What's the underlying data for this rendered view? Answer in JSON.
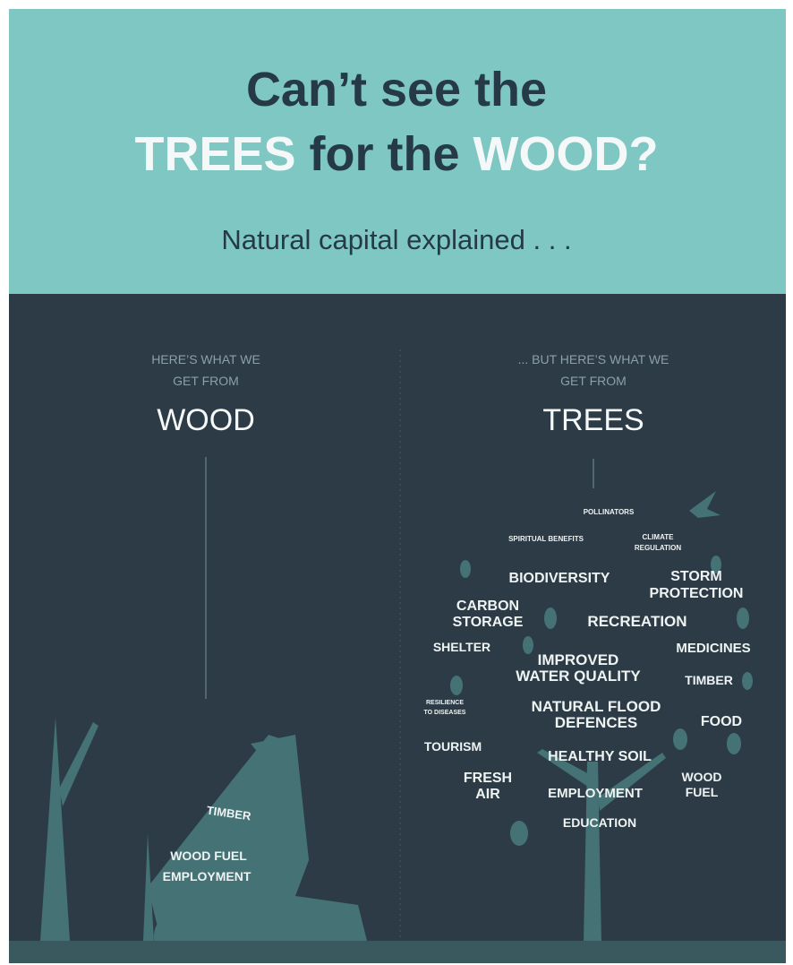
{
  "header": {
    "title_line1": "Can’t see the",
    "title_line2": [
      "TREES",
      " for the ",
      "WOOD?"
    ],
    "subtitle": "Natural capital explained . . ."
  },
  "left": {
    "heading_lines": [
      "HERE’S WHAT WE",
      "GET FROM"
    ],
    "title": "WOOD",
    "items": [
      [
        "TIMBER"
      ],
      [
        "WOOD FUEL"
      ],
      [
        "EMPLOYMENT"
      ]
    ]
  },
  "right": {
    "heading_lines": [
      "... BUT HERE’S WHAT WE",
      "GET FROM"
    ],
    "title": "TREES",
    "items": [
      [
        "POLLINATORS"
      ],
      [
        "SPIRITUAL BENEFITS"
      ],
      [
        "CLIMATE",
        "REGULATION"
      ],
      [
        "BIODIVERSITY"
      ],
      [
        "STORM",
        "PROTECTION"
      ],
      [
        "CARBON",
        "STORAGE"
      ],
      [
        "RECREATION"
      ],
      [
        "SHELTER"
      ],
      [
        "IMPROVED",
        "WATER QUALITY"
      ],
      [
        "MEDICINES"
      ],
      [
        "TIMBER"
      ],
      [
        "RESILIENCE",
        "TO DISEASES"
      ],
      [
        "NATURAL FLOOD",
        "DEFENCES"
      ],
      [
        "FOOD"
      ],
      [
        "TOURISM"
      ],
      [
        "HEALTHY SOIL"
      ],
      [
        "FRESH",
        "AIR"
      ],
      [
        "EMPLOYMENT"
      ],
      [
        "WOOD",
        "FUEL"
      ],
      [
        "EDUCATION"
      ]
    ]
  }
}
